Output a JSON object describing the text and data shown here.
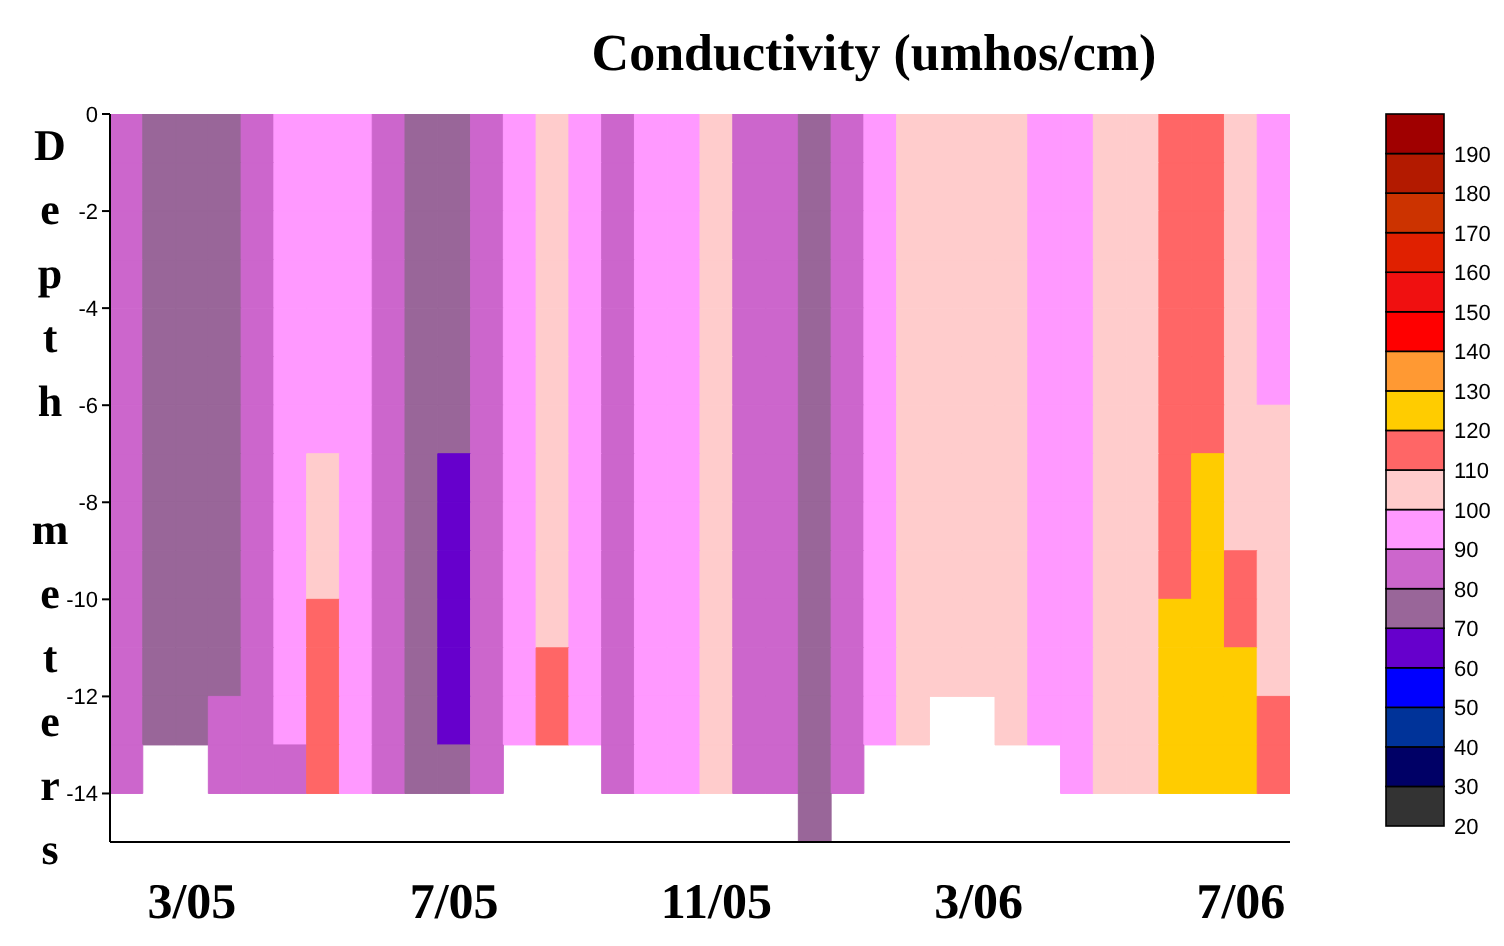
{
  "chart_data": {
    "type": "heatmap",
    "title": "Conductivity (umhos/cm)",
    "ylabel": "Depth meters",
    "categories": [
      null,
      null,
      "3/05",
      null,
      null,
      null,
      null,
      null,
      null,
      null,
      "7/05",
      null,
      null,
      null,
      null,
      null,
      null,
      null,
      "11/05",
      null,
      null,
      null,
      null,
      null,
      null,
      null,
      "3/06",
      null,
      null,
      null,
      null,
      null,
      null,
      null,
      "7/06",
      null
    ],
    "ylim": [
      -15,
      0
    ],
    "yticks": [
      0,
      -2,
      -4,
      -6,
      -8,
      -10,
      -12,
      -14
    ],
    "clim": [
      20,
      200
    ],
    "cticks": [
      20,
      30,
      40,
      50,
      60,
      70,
      80,
      90,
      100,
      110,
      120,
      130,
      140,
      150,
      160,
      170,
      180,
      190
    ],
    "colors": [
      "#333333",
      "#000066",
      "#003399",
      "#0000ff",
      "#6600cc",
      "#996699",
      "#cc66cc",
      "#ff99ff",
      "#ffcccc",
      "#ff6666",
      "#ffcc00",
      "#ff9933",
      "#ff0000",
      "#f01010",
      "#e02000",
      "#cc3300",
      "#b31a00",
      "#a00000"
    ],
    "cells": [
      [
        85,
        75,
        75,
        75,
        85,
        95,
        95,
        95,
        85,
        75,
        75,
        85,
        95,
        105,
        95,
        85,
        95,
        95,
        105,
        85,
        85,
        75,
        85,
        95,
        105,
        105,
        105,
        105,
        95,
        95,
        105,
        105,
        115,
        115,
        105,
        95
      ],
      [
        85,
        75,
        75,
        75,
        85,
        95,
        95,
        95,
        85,
        75,
        75,
        85,
        95,
        105,
        95,
        85,
        95,
        95,
        105,
        85,
        85,
        75,
        85,
        95,
        105,
        105,
        105,
        105,
        95,
        95,
        105,
        105,
        115,
        115,
        105,
        95
      ],
      [
        85,
        75,
        75,
        75,
        85,
        95,
        95,
        95,
        85,
        75,
        75,
        85,
        95,
        105,
        95,
        85,
        95,
        95,
        105,
        85,
        85,
        75,
        85,
        95,
        105,
        105,
        105,
        105,
        95,
        95,
        105,
        105,
        115,
        115,
        105,
        95
      ],
      [
        85,
        75,
        75,
        75,
        85,
        95,
        95,
        95,
        85,
        75,
        75,
        85,
        95,
        105,
        95,
        85,
        95,
        95,
        105,
        85,
        85,
        75,
        85,
        95,
        105,
        105,
        105,
        105,
        95,
        95,
        105,
        105,
        115,
        115,
        105,
        95
      ],
      [
        85,
        75,
        75,
        75,
        85,
        95,
        95,
        95,
        85,
        75,
        75,
        85,
        95,
        105,
        95,
        85,
        95,
        95,
        105,
        85,
        85,
        75,
        85,
        95,
        105,
        105,
        105,
        105,
        95,
        95,
        105,
        105,
        115,
        115,
        105,
        95
      ],
      [
        85,
        75,
        75,
        75,
        85,
        95,
        95,
        95,
        85,
        75,
        75,
        85,
        95,
        105,
        95,
        85,
        95,
        95,
        105,
        85,
        85,
        75,
        85,
        95,
        105,
        105,
        105,
        105,
        95,
        95,
        105,
        105,
        115,
        115,
        105,
        95
      ],
      [
        85,
        75,
        75,
        75,
        85,
        95,
        95,
        95,
        85,
        75,
        75,
        85,
        95,
        105,
        95,
        85,
        95,
        95,
        105,
        85,
        85,
        75,
        85,
        95,
        105,
        105,
        105,
        105,
        95,
        95,
        105,
        105,
        115,
        115,
        105,
        105
      ],
      [
        85,
        75,
        75,
        75,
        85,
        95,
        105,
        95,
        85,
        75,
        65,
        85,
        95,
        105,
        95,
        85,
        95,
        95,
        105,
        85,
        85,
        75,
        85,
        95,
        105,
        105,
        105,
        105,
        95,
        95,
        105,
        105,
        115,
        125,
        105,
        105
      ],
      [
        85,
        75,
        75,
        75,
        85,
        95,
        105,
        95,
        85,
        75,
        65,
        85,
        95,
        105,
        95,
        85,
        95,
        95,
        105,
        85,
        85,
        75,
        85,
        95,
        105,
        105,
        105,
        105,
        95,
        95,
        105,
        105,
        115,
        125,
        105,
        105
      ],
      [
        85,
        75,
        75,
        75,
        85,
        95,
        105,
        95,
        85,
        75,
        65,
        85,
        95,
        105,
        95,
        85,
        95,
        95,
        105,
        85,
        85,
        75,
        85,
        95,
        105,
        105,
        105,
        105,
        95,
        95,
        105,
        105,
        115,
        125,
        115,
        105
      ],
      [
        85,
        75,
        75,
        75,
        85,
        95,
        115,
        95,
        85,
        75,
        65,
        85,
        95,
        105,
        95,
        85,
        95,
        95,
        105,
        85,
        85,
        75,
        85,
        95,
        105,
        105,
        105,
        105,
        95,
        95,
        105,
        105,
        125,
        125,
        115,
        105
      ],
      [
        85,
        75,
        75,
        75,
        85,
        95,
        115,
        95,
        85,
        75,
        65,
        85,
        95,
        115,
        95,
        85,
        95,
        95,
        105,
        85,
        85,
        75,
        85,
        95,
        105,
        105,
        105,
        105,
        95,
        95,
        105,
        105,
        125,
        125,
        125,
        105
      ],
      [
        85,
        75,
        75,
        85,
        85,
        95,
        115,
        95,
        85,
        75,
        65,
        85,
        95,
        115,
        95,
        85,
        95,
        95,
        105,
        85,
        85,
        75,
        85,
        95,
        105,
        null,
        null,
        105,
        95,
        95,
        105,
        105,
        125,
        125,
        125,
        115
      ],
      [
        85,
        null,
        null,
        85,
        85,
        85,
        115,
        95,
        85,
        75,
        75,
        85,
        null,
        null,
        null,
        85,
        95,
        95,
        105,
        85,
        85,
        75,
        85,
        null,
        null,
        null,
        null,
        null,
        null,
        95,
        105,
        105,
        125,
        125,
        125,
        115
      ],
      [
        null,
        null,
        null,
        null,
        null,
        null,
        null,
        null,
        null,
        null,
        null,
        null,
        null,
        null,
        null,
        null,
        null,
        null,
        null,
        null,
        null,
        75,
        null,
        null,
        null,
        null,
        null,
        null,
        null,
        null,
        null,
        null,
        null,
        null,
        null,
        null
      ]
    ]
  }
}
